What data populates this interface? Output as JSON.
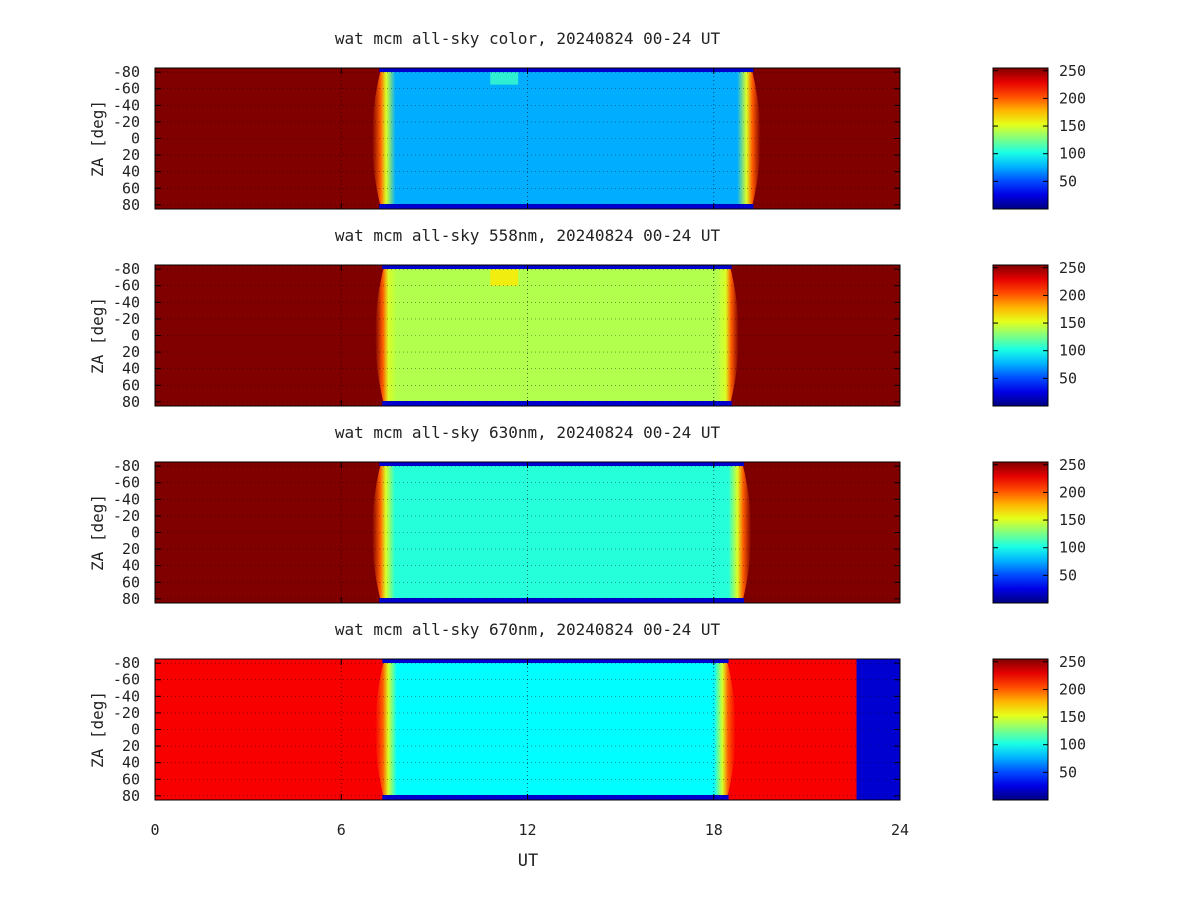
{
  "figure": {
    "xlabel": "UT",
    "ylabel": "ZA [deg]",
    "x_ticks": [
      "0",
      "6",
      "12",
      "18",
      "24"
    ],
    "y_ticks": [
      "-80",
      "-60",
      "-40",
      "-20",
      "0",
      "20",
      "40",
      "60",
      "80"
    ],
    "colorbar_ticks": [
      "50",
      "100",
      "150",
      "200",
      "250"
    ]
  },
  "colors": {
    "night_saturated": "#8b0a0a",
    "night_670nm": "#e01a10",
    "sky_blue": "#1a8cff",
    "sky_green_yellow": "#a8f060",
    "sky_cyan": "#3cc8f0",
    "sky_light_blue": "#3aaaf5",
    "dropout_blue": "#0818b8"
  },
  "chart_data": [
    {
      "type": "heatmap",
      "title": "wat mcm all-sky color, 20240824 00-24 UT",
      "xlabel": "",
      "ylabel": "ZA [deg]",
      "xlim": [
        0,
        24
      ],
      "ylim": [
        -85,
        85
      ],
      "color_range": [
        0,
        255
      ],
      "night_value": 255,
      "day_value": 75,
      "day_start_ut": 6.9,
      "day_end_ut": 19.6,
      "feature_patch": {
        "ut": [
          10.8,
          11.7
        ],
        "za": [
          -80,
          -65
        ],
        "value": 110
      },
      "colorbar_ticks": [
        50,
        100,
        150,
        200,
        250
      ]
    },
    {
      "type": "heatmap",
      "title": "wat mcm all-sky 558nm, 20240824 00-24 UT",
      "xlabel": "",
      "ylabel": "ZA [deg]",
      "xlim": [
        0,
        24
      ],
      "ylim": [
        -85,
        85
      ],
      "color_range": [
        0,
        255
      ],
      "night_value": 255,
      "day_value": 140,
      "day_start_ut": 7.0,
      "day_end_ut": 18.9,
      "feature_patch": {
        "ut": [
          10.8,
          11.7
        ],
        "za": [
          -80,
          -60
        ],
        "value": 165
      },
      "colorbar_ticks": [
        50,
        100,
        150,
        200,
        250
      ]
    },
    {
      "type": "heatmap",
      "title": "wat mcm all-sky 630nm, 20240824 00-24 UT",
      "xlabel": "",
      "ylabel": "ZA [deg]",
      "xlim": [
        0,
        24
      ],
      "ylim": [
        -85,
        85
      ],
      "color_range": [
        0,
        255
      ],
      "night_value": 255,
      "day_value": 105,
      "day_start_ut": 6.9,
      "day_end_ut": 19.3,
      "feature_patch": null,
      "colorbar_ticks": [
        50,
        100,
        150,
        200,
        250
      ]
    },
    {
      "type": "heatmap",
      "title": "wat mcm all-sky 670nm, 20240824 00-24 UT",
      "xlabel": "UT",
      "ylabel": "ZA [deg]",
      "xlim": [
        0,
        24
      ],
      "ylim": [
        -85,
        85
      ],
      "color_range": [
        0,
        255
      ],
      "night_value": 225,
      "day_value": 95,
      "day_start_ut": 7.0,
      "day_end_ut": 18.8,
      "dropout_ut": [
        22.6,
        24
      ],
      "dropout_value": 20,
      "feature_patch": null,
      "colorbar_ticks": [
        50,
        100,
        150,
        200,
        250
      ]
    }
  ]
}
